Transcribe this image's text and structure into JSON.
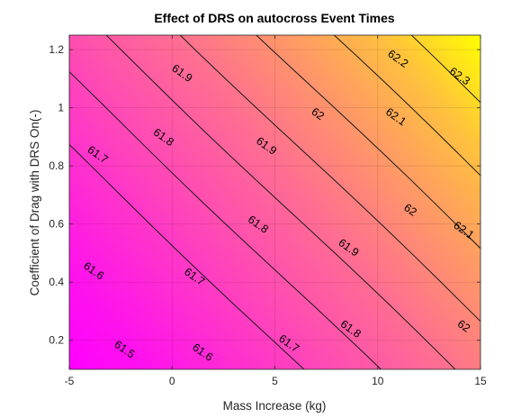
{
  "chart_data": {
    "type": "contour",
    "title": "Effect of DRS on autocross Event Times",
    "xlabel": "Mass Increase (kg)",
    "ylabel": "Coefficient of Drag with DRS On(-)",
    "xlim": [
      -5,
      15
    ],
    "ylim": [
      0.1,
      1.25
    ],
    "xticks": [
      -5,
      0,
      5,
      10,
      15
    ],
    "yticks": [
      0.2,
      0.4,
      0.6,
      0.8,
      1,
      1.2
    ],
    "xtick_labels": [
      "-5",
      "0",
      "5",
      "10",
      "15"
    ],
    "ytick_labels": [
      "0.2",
      "0.4",
      "0.6",
      "0.8",
      "1",
      "1.2"
    ],
    "grid": true,
    "colormap": "spring",
    "colormap_colors": [
      "#ff00ff",
      "#ffff00"
    ],
    "z_range": [
      61.42,
      62.4
    ],
    "contour_levels": [
      61.5,
      61.6,
      61.7,
      61.8,
      61.9,
      62.0,
      62.1,
      62.2,
      62.3
    ],
    "contour_labels": [
      {
        "text": "61.5",
        "x": -2.3,
        "y": 0.17
      },
      {
        "text": "61.6",
        "x": 1.5,
        "y": 0.16
      },
      {
        "text": "61.7",
        "x": 5.7,
        "y": 0.19
      },
      {
        "text": "61.8",
        "x": 8.7,
        "y": 0.24
      },
      {
        "text": "62",
        "x": 14.2,
        "y": 0.25
      },
      {
        "text": "61.6",
        "x": -3.8,
        "y": 0.44
      },
      {
        "text": "61.7",
        "x": 1.1,
        "y": 0.42
      },
      {
        "text": "61.8",
        "x": 4.2,
        "y": 0.6
      },
      {
        "text": "61.9",
        "x": 8.6,
        "y": 0.52
      },
      {
        "text": "62",
        "x": 11.6,
        "y": 0.65
      },
      {
        "text": "62.1",
        "x": 14.2,
        "y": 0.58
      },
      {
        "text": "61.7",
        "x": -3.6,
        "y": 0.84
      },
      {
        "text": "61.8",
        "x": -0.4,
        "y": 0.9
      },
      {
        "text": "61.9",
        "x": 4.6,
        "y": 0.87
      },
      {
        "text": "62",
        "x": 7.1,
        "y": 0.98
      },
      {
        "text": "62.1",
        "x": 10.9,
        "y": 0.97
      },
      {
        "text": "61.9",
        "x": 0.5,
        "y": 1.12
      },
      {
        "text": "62.2",
        "x": 11.0,
        "y": 1.17
      },
      {
        "text": "62.3",
        "x": 14.0,
        "y": 1.11
      }
    ]
  }
}
